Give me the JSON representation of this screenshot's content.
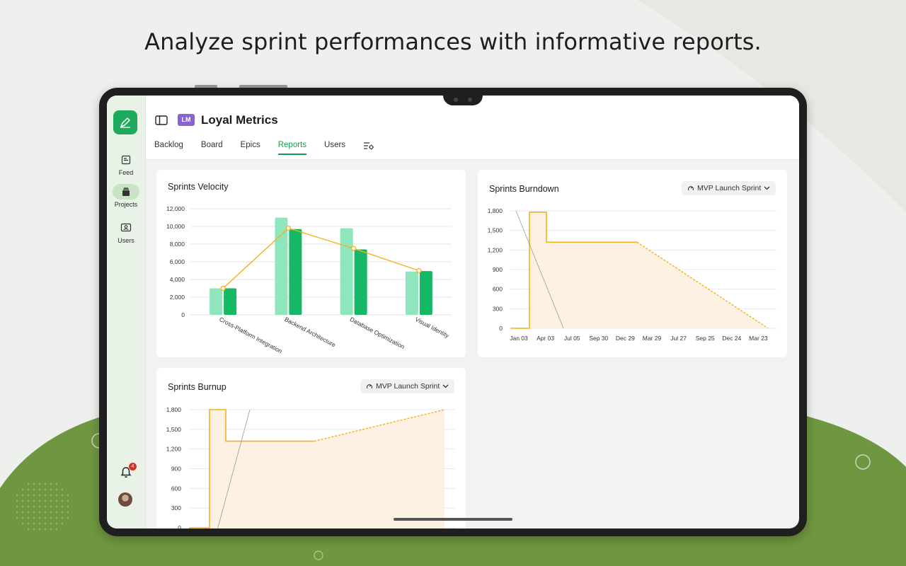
{
  "headline": "Analyze sprint performances with informative reports.",
  "colors": {
    "accent": "#179a4f",
    "bar_light": "#8fe6bd",
    "bar_dark": "#15b864",
    "line": "#f5b11c",
    "area": "#fdf1e4",
    "badge": "#8a63d2"
  },
  "sidebar": {
    "logo_icon": "pen-icon",
    "items": [
      {
        "label": "Feed",
        "icon": "feed-icon"
      },
      {
        "label": "Projects",
        "icon": "folders-icon",
        "active": true
      },
      {
        "label": "Users",
        "icon": "user-card-icon"
      }
    ],
    "notifications_count": "4"
  },
  "header": {
    "project_badge": "LM",
    "project_name": "Loyal Metrics",
    "tabs": [
      "Backlog",
      "Board",
      "Epics",
      "Reports",
      "Users"
    ],
    "active_tab": "Reports"
  },
  "velocity": {
    "title": "Sprints Velocity",
    "chart_data": {
      "type": "bar",
      "categories": [
        "Cross-Platform Integration",
        "Backend Architecture",
        "Database Optimization",
        "Visual Identity"
      ],
      "series": [
        {
          "values": [
            3000,
            11000,
            9800,
            4900
          ]
        },
        {
          "values": [
            3000,
            9700,
            7400,
            4950
          ]
        }
      ],
      "line_values": [
        3000,
        9800,
        7500,
        5000
      ],
      "yticks": [
        "12,000",
        "10,000",
        "8,000",
        "6,000",
        "4,000",
        "2,000",
        "0"
      ],
      "ylim": [
        0,
        12000
      ]
    }
  },
  "burndown": {
    "title": "Sprints Burndown",
    "sprint": "MVP Launch Sprint",
    "chart_data": {
      "type": "line",
      "xticks": [
        "Jan 03",
        "Apr 03",
        "Jul 05",
        "Sep 30",
        "Dec 29",
        "Mar 29",
        "Jul 27",
        "Sep 25",
        "Dec 24",
        "Mar 23"
      ],
      "yticks": [
        "1,800",
        "1,500",
        "1,200",
        "900",
        "600",
        "300",
        "0"
      ],
      "ylim": [
        0,
        1800
      ]
    }
  },
  "burnup": {
    "title": "Sprints Burnup",
    "sprint": "MVP Launch Sprint",
    "chart_data": {
      "type": "line",
      "yticks": [
        "1,800",
        "1,500",
        "1,200",
        "900",
        "600",
        "300",
        "0"
      ],
      "ylim": [
        0,
        1800
      ]
    }
  }
}
